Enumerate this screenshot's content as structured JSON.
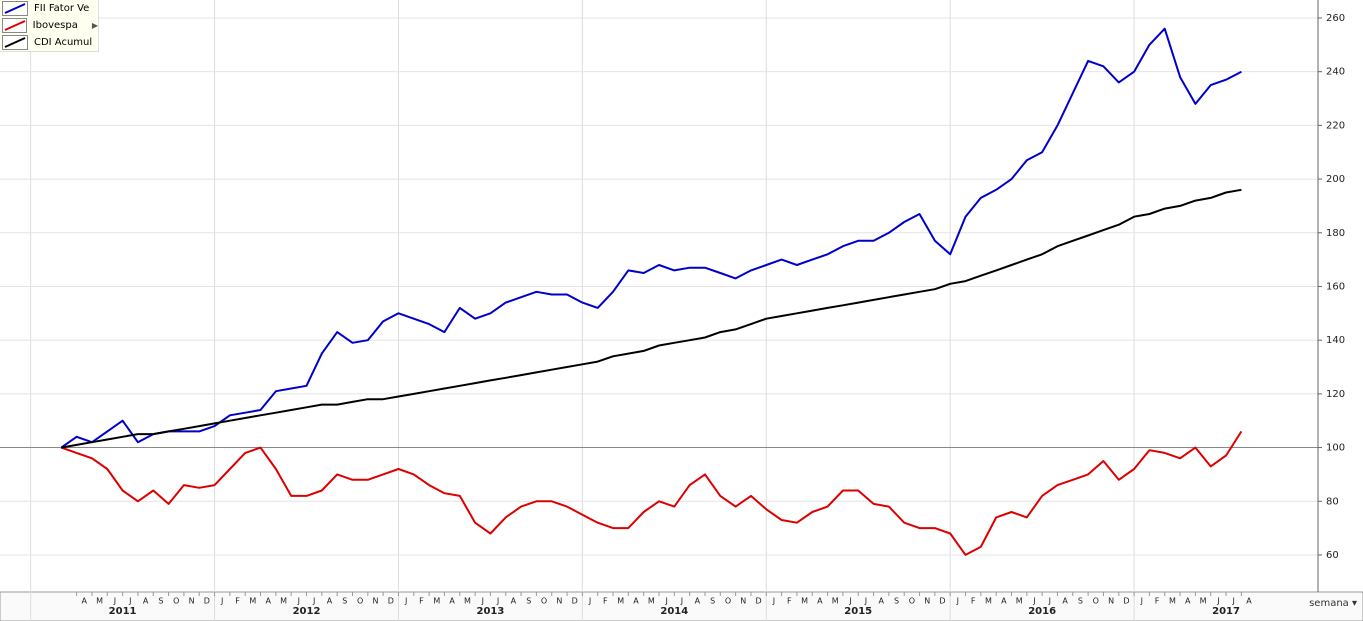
{
  "chart_data": {
    "type": "line",
    "period": "semana",
    "x": [
      "2011-03",
      "2011-04",
      "2011-05",
      "2011-06",
      "2011-07",
      "2011-08",
      "2011-09",
      "2011-10",
      "2011-11",
      "2011-12",
      "2012-01",
      "2012-02",
      "2012-03",
      "2012-04",
      "2012-05",
      "2012-06",
      "2012-07",
      "2012-08",
      "2012-09",
      "2012-10",
      "2012-11",
      "2012-12",
      "2013-01",
      "2013-02",
      "2013-03",
      "2013-04",
      "2013-05",
      "2013-06",
      "2013-07",
      "2013-08",
      "2013-09",
      "2013-10",
      "2013-11",
      "2013-12",
      "2014-01",
      "2014-02",
      "2014-03",
      "2014-04",
      "2014-05",
      "2014-06",
      "2014-07",
      "2014-08",
      "2014-09",
      "2014-10",
      "2014-11",
      "2014-12",
      "2015-01",
      "2015-02",
      "2015-03",
      "2015-04",
      "2015-05",
      "2015-06",
      "2015-07",
      "2015-08",
      "2015-09",
      "2015-10",
      "2015-11",
      "2015-12",
      "2016-01",
      "2016-02",
      "2016-03",
      "2016-04",
      "2016-05",
      "2016-06",
      "2016-07",
      "2016-08",
      "2016-09",
      "2016-10",
      "2016-11",
      "2016-12",
      "2017-01",
      "2017-02",
      "2017-03",
      "2017-04",
      "2017-05",
      "2017-06",
      "2017-07",
      "2017-08"
    ],
    "series": [
      {
        "name": "FII Fator Ve",
        "color": "#0000cc",
        "values": [
          100,
          104,
          102,
          106,
          110,
          102,
          105,
          106,
          106,
          106,
          108,
          112,
          113,
          114,
          121,
          122,
          123,
          135,
          143,
          139,
          140,
          147,
          150,
          148,
          146,
          143,
          152,
          148,
          150,
          154,
          156,
          158,
          157,
          157,
          154,
          152,
          158,
          166,
          165,
          168,
          166,
          167,
          167,
          165,
          163,
          166,
          168,
          170,
          168,
          170,
          172,
          175,
          177,
          177,
          180,
          184,
          187,
          177,
          172,
          186,
          193,
          196,
          200,
          207,
          210,
          220,
          232,
          244,
          242,
          236,
          240,
          250,
          256,
          238,
          228,
          235,
          237,
          240
        ]
      },
      {
        "name": "Ibovespa",
        "color": "#dd0000",
        "values": [
          100,
          98,
          96,
          92,
          84,
          80,
          84,
          79,
          86,
          85,
          86,
          92,
          98,
          100,
          92,
          82,
          82,
          84,
          90,
          88,
          88,
          90,
          92,
          90,
          86,
          83,
          82,
          72,
          68,
          74,
          78,
          80,
          80,
          78,
          75,
          72,
          70,
          70,
          76,
          80,
          78,
          86,
          90,
          82,
          78,
          82,
          77,
          73,
          72,
          76,
          78,
          84,
          84,
          79,
          78,
          72,
          70,
          70,
          68,
          60,
          63,
          74,
          76,
          74,
          82,
          86,
          88,
          90,
          95,
          88,
          92,
          99,
          98,
          96,
          100,
          93,
          97,
          106
        ]
      },
      {
        "name": "CDI Acumul",
        "color": "#000000",
        "values": [
          100,
          101,
          102,
          103,
          104,
          105,
          105,
          106,
          107,
          108,
          109,
          110,
          111,
          112,
          113,
          114,
          115,
          116,
          116,
          117,
          118,
          118,
          119,
          120,
          121,
          122,
          123,
          124,
          125,
          126,
          127,
          128,
          129,
          130,
          131,
          132,
          134,
          135,
          136,
          138,
          139,
          140,
          141,
          143,
          144,
          146,
          148,
          149,
          150,
          151,
          152,
          153,
          154,
          155,
          156,
          157,
          158,
          159,
          161,
          162,
          164,
          166,
          168,
          170,
          172,
          175,
          177,
          179,
          181,
          183,
          186,
          187,
          189,
          190,
          192,
          193,
          195,
          196
        ]
      }
    ],
    "xlim": [
      "2010-11",
      "2018-01"
    ],
    "years": [
      "2011",
      "2012",
      "2013",
      "2014",
      "2015",
      "2016",
      "2017"
    ],
    "months": [
      "J",
      "F",
      "M",
      "A",
      "M",
      "J",
      "J",
      "A",
      "S",
      "O",
      "N",
      "D"
    ],
    "ylim": [
      46.2,
      266.7
    ],
    "yticks": [
      60,
      80,
      100,
      120,
      140,
      160,
      180,
      200,
      220,
      240,
      260
    ],
    "reference_line": 100,
    "grid": true
  }
}
